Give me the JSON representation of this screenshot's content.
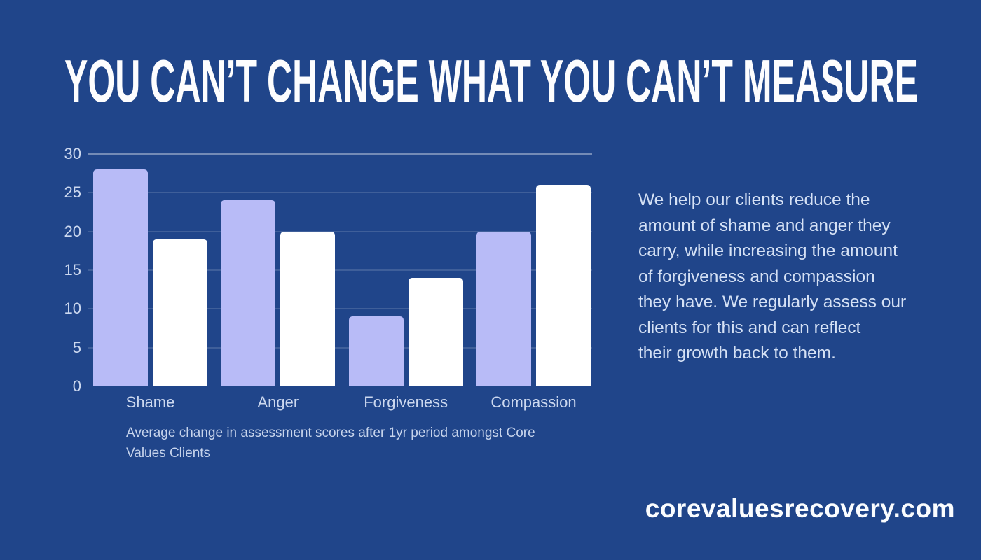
{
  "page": {
    "background_color": "#20458a",
    "title": "YOU CAN’T CHANGE WHAT YOU CAN’T MEASURE",
    "website": "corevaluesrecovery.com"
  },
  "description": {
    "text": "We help our clients reduce the\namount of shame and anger they\ncarry, while increasing the amount\nof forgiveness and compassion\nthey have. We regularly assess our\nclients for this and can reflect\ntheir growth back to them."
  },
  "chart_data": {
    "type": "bar",
    "title": "",
    "xlabel": "",
    "ylabel": "",
    "categories": [
      "Shame",
      "Anger",
      "Forgiveness",
      "Compassion"
    ],
    "series": [
      {
        "name": "lavender",
        "color": "#b8bbf7",
        "values": [
          28,
          24,
          9,
          20
        ]
      },
      {
        "name": "white",
        "color": "#ffffff",
        "values": [
          19,
          20,
          14,
          26
        ]
      }
    ],
    "ylim": [
      0,
      30
    ],
    "yticks": [
      0,
      5,
      10,
      15,
      20,
      25,
      30
    ],
    "grid": true,
    "legend": "none",
    "caption": "Average change in assessment scores after 1yr period amongst Core\nValues Clients"
  }
}
